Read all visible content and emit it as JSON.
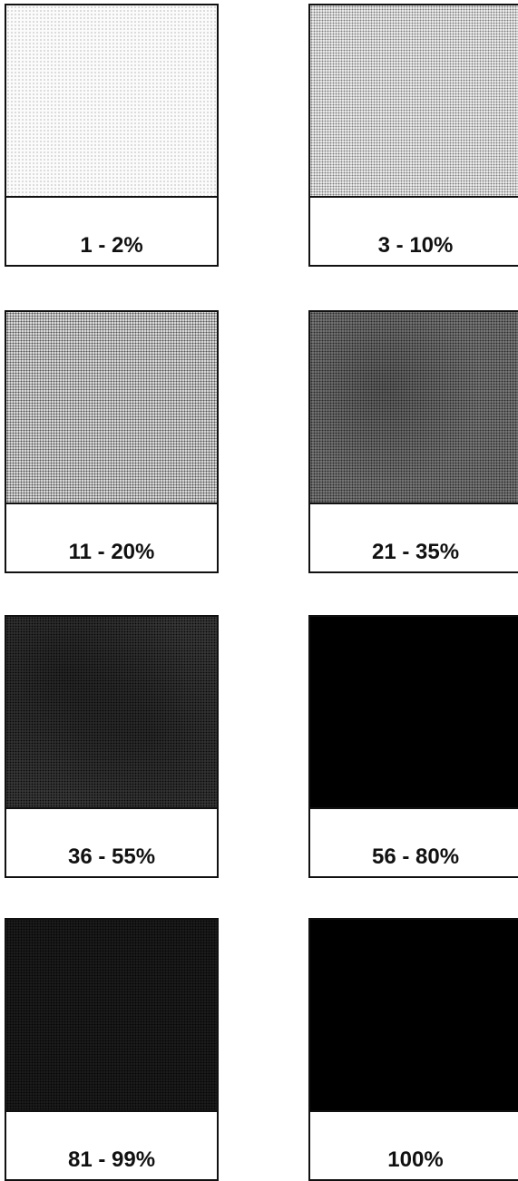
{
  "swatches": [
    {
      "label": "1 - 2%",
      "shade": "#f6f6f6"
    },
    {
      "label": "3 - 10%",
      "shade": "#e3e3e3"
    },
    {
      "label": "11 - 20%",
      "shade": "#c8c8c8"
    },
    {
      "label": "21 - 35%",
      "shade": "#666666"
    },
    {
      "label": "36 - 55%",
      "shade": "#2f2f2f"
    },
    {
      "label": "56 - 80%",
      "shade": "#000000"
    },
    {
      "label": "81 - 99%",
      "shade": "#141414"
    },
    {
      "label": "100%",
      "shade": "#000000"
    }
  ]
}
